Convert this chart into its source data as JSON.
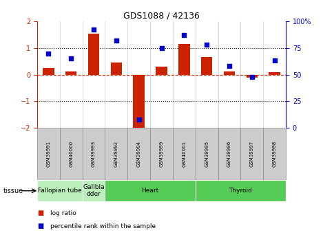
{
  "title": "GDS1088 / 42136",
  "samples": [
    "GSM39991",
    "GSM40000",
    "GSM39993",
    "GSM39992",
    "GSM39994",
    "GSM39999",
    "GSM40001",
    "GSM39995",
    "GSM39996",
    "GSM39997",
    "GSM39998"
  ],
  "log_ratio": [
    0.25,
    0.12,
    1.55,
    0.45,
    -2.1,
    0.3,
    1.15,
    0.65,
    0.12,
    -0.12,
    0.1
  ],
  "percentile_rank": [
    70,
    65,
    92,
    82,
    8,
    75,
    87,
    78,
    58,
    48,
    63
  ],
  "ylim_left": [
    -2,
    2
  ],
  "ylim_right": [
    0,
    100
  ],
  "yticks_left": [
    -2,
    -1,
    0,
    1,
    2
  ],
  "yticks_right": [
    0,
    25,
    50,
    75,
    100
  ],
  "yticklabels_right": [
    "0",
    "25",
    "50",
    "75",
    "100%"
  ],
  "bar_color": "#cc2200",
  "dot_color": "#0000cc",
  "tissue_groups": [
    {
      "label": "Fallopian tube",
      "start": 0,
      "end": 2,
      "color": "#bbeebb"
    },
    {
      "label": "Gallbla\ndder",
      "start": 2,
      "end": 3,
      "color": "#bbeebb"
    },
    {
      "label": "Heart",
      "start": 3,
      "end": 7,
      "color": "#55cc55"
    },
    {
      "label": "Thyroid",
      "start": 7,
      "end": 11,
      "color": "#55cc55"
    }
  ],
  "sample_box_color": "#cccccc",
  "sample_box_edge": "#888888",
  "tissue_label": "tissue",
  "legend_bar_label": "log ratio",
  "legend_dot_label": "percentile rank within the sample",
  "axis_left_color": "#cc2200",
  "axis_right_color": "#0000cc",
  "background_color": "#ffffff"
}
